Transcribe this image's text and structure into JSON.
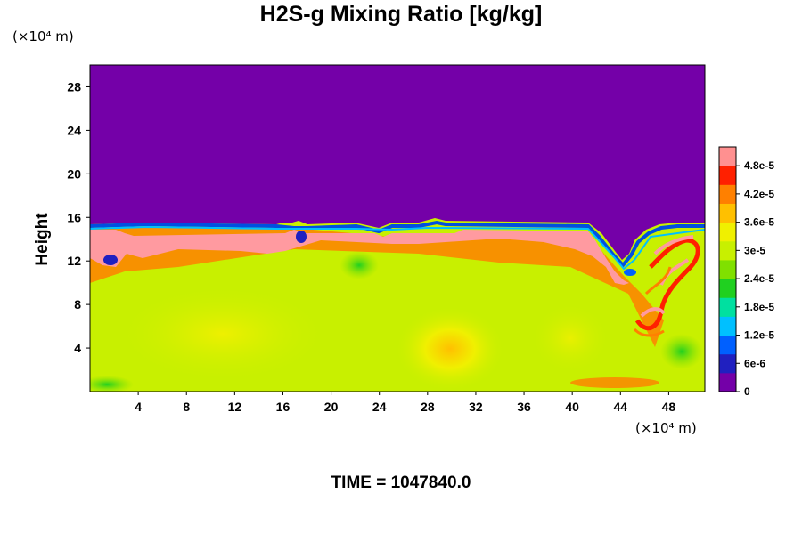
{
  "chart_data": {
    "type": "heatmap",
    "title": "H2S-g Mixing Ratio [kg/kg]",
    "ylabel": "Height",
    "xlabel": "",
    "x_unit": "(×10⁴ m)",
    "y_unit": "(×10⁴ m)",
    "x_ticks": [
      4,
      8,
      12,
      16,
      20,
      24,
      28,
      32,
      36,
      40,
      44,
      48
    ],
    "y_ticks": [
      4,
      8,
      12,
      16,
      20,
      24,
      28
    ],
    "xlim": [
      0,
      51
    ],
    "ylim": [
      0,
      30
    ],
    "colorbar": {
      "min": 0,
      "max": 5.2e-05,
      "tick_values": [
        0,
        6e-06,
        1.2e-05,
        1.8e-05,
        2.4e-05,
        3e-05,
        3.6e-05,
        4.2e-05,
        4.8e-05
      ],
      "tick_labels": [
        "0",
        "6e-6",
        "1.2e-5",
        "1.8e-5",
        "2.4e-5",
        "3e-5",
        "3.6e-5",
        "4.2e-5",
        "4.8e-5"
      ],
      "colors": [
        "#7400a8",
        "#2020c0",
        "#0060ff",
        "#00c0ff",
        "#00e0a0",
        "#20d020",
        "#80e000",
        "#c8f000",
        "#f0f000",
        "#ffc000",
        "#ff8000",
        "#ff2000",
        "#ff9090"
      ]
    },
    "field_summary": {
      "upper_value": 0,
      "interface_height": 15.5,
      "interface_band_value": 5.2e-05,
      "lower_value": 3.3e-05
    }
  },
  "time_label": "TIME = 1047840.0"
}
